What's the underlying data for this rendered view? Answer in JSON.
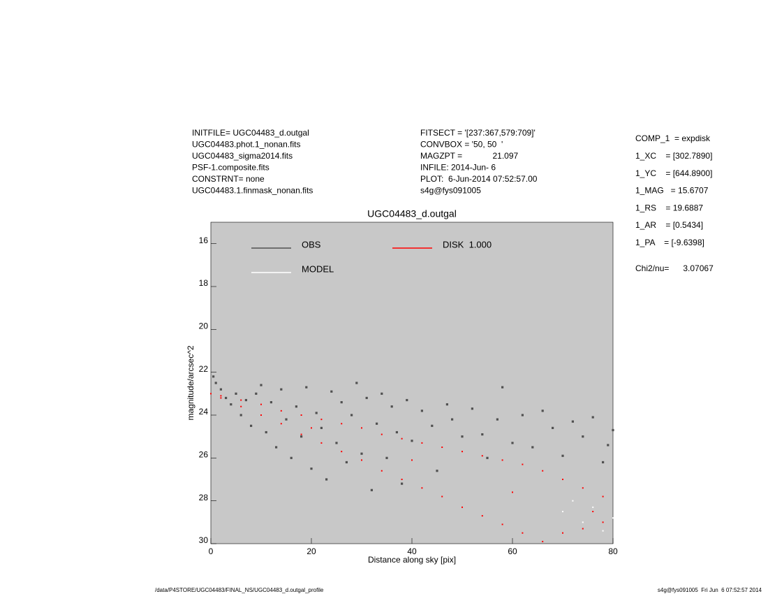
{
  "chart_data": {
    "type": "scatter",
    "title": "UGC04483_d.outgal",
    "xlabel": "Distance along sky [pix]",
    "ylabel": "magnitude/arcsec^2",
    "header_left": [
      "INITFILE= UGC04483_d.outgal",
      "UGC04483.phot.1_nonan.fits",
      "UGC04483_sigma2014.fits",
      "PSF-1.composite.fits",
      "CONSTRNT= none",
      "UGC04483.1.finmask_nonan.fits"
    ],
    "header_middle": [
      "FITSECT = '[237:367,579:709]'",
      "CONVBOX = '50, 50  '",
      "MAGZPT =             21.097",
      "INFILE: 2014-Jun- 6",
      "PLOT:  6-Jun-2014 07:52:57.00",
      "s4g@fys091005"
    ],
    "header_right": [
      "COMP_1  = expdisk",
      "1_XC    = [302.7890]",
      "1_YC    = [644.8900]",
      "1_MAG   = 15.6707",
      "1_RS    = 19.6887",
      "1_AR    = [0.5434]",
      "1_PA    = [-9.6398]"
    ],
    "chi2": "Chi2/nu=      3.07067",
    "footer_left": "/data/P4STORE/UGC04483/FINAL_NS/UGC04483_d.outgal_profile",
    "footer_right": "s4g@fys091005  Fri Jun  6 07:52:57 2014",
    "xlim": [
      0,
      80
    ],
    "xticks": [
      0,
      20,
      40,
      60,
      80
    ],
    "ylim": [
      15,
      30
    ],
    "yticks": [
      16,
      18,
      20,
      22,
      24,
      26,
      28,
      30
    ],
    "y_inverted": true,
    "background": "#c8c8c8",
    "legend": "top",
    "series": [
      {
        "name": "OBS",
        "color": "#505050",
        "x": [
          0.5,
          1,
          2,
          3,
          4,
          5,
          6,
          7,
          8,
          9,
          10,
          11,
          12,
          13,
          14,
          15,
          16,
          17,
          18,
          19,
          20,
          21,
          22,
          23,
          24,
          25,
          26,
          27,
          28,
          29,
          30,
          31,
          32,
          33,
          34,
          35,
          36,
          37,
          38,
          39,
          40,
          42,
          44,
          45,
          47,
          48,
          50,
          52,
          54,
          55,
          57,
          58,
          60,
          62,
          64,
          66,
          68,
          70,
          72,
          74,
          76,
          78,
          79,
          80
        ],
        "values": [
          22.2,
          22.5,
          22.8,
          23.2,
          23.5,
          23.0,
          24.0,
          23.3,
          24.5,
          23.0,
          22.6,
          24.8,
          23.4,
          25.5,
          22.8,
          24.2,
          26.0,
          23.6,
          25.0,
          22.7,
          26.5,
          23.9,
          24.6,
          27.0,
          22.9,
          25.3,
          23.4,
          26.2,
          24.0,
          22.5,
          25.8,
          23.2,
          27.5,
          24.4,
          23.0,
          26.0,
          23.6,
          24.8,
          27.2,
          23.3,
          25.2,
          23.8,
          24.5,
          26.6,
          23.5,
          24.2,
          25.0,
          23.7,
          24.9,
          26.0,
          24.2,
          22.7,
          25.3,
          24.0,
          25.5,
          23.8,
          24.6,
          25.9,
          24.3,
          25.0,
          24.1,
          26.2,
          25.4,
          24.7
        ]
      },
      {
        "name": "DISK  1.000",
        "color": "#ff0000",
        "x": [
          0,
          2,
          2,
          6,
          6,
          10,
          10,
          14,
          14,
          18,
          18,
          20,
          22,
          22,
          26,
          26,
          30,
          30,
          34,
          34,
          38,
          38,
          40,
          42,
          42,
          46,
          46,
          50,
          50,
          54,
          54,
          58,
          58,
          60,
          62,
          62,
          66,
          66,
          70,
          70,
          74,
          74,
          76,
          78,
          78
        ],
        "values": [
          23.0,
          23.1,
          23.2,
          23.3,
          23.6,
          23.5,
          24.0,
          23.8,
          24.4,
          24.0,
          24.9,
          24.6,
          24.2,
          25.3,
          24.4,
          25.7,
          24.6,
          26.1,
          24.9,
          26.6,
          25.1,
          27.0,
          26.1,
          25.3,
          27.4,
          25.5,
          27.8,
          25.7,
          28.3,
          25.9,
          28.7,
          26.1,
          29.1,
          27.6,
          26.3,
          29.5,
          26.6,
          29.9,
          27.0,
          29.5,
          27.4,
          29.3,
          28.5,
          27.8,
          29.0
        ]
      },
      {
        "name": "MODEL",
        "color": "#ffffff",
        "x": [
          70,
          72,
          74,
          76,
          78,
          80
        ],
        "values": [
          28.5,
          28.0,
          29.0,
          28.3,
          29.4,
          28.8
        ]
      }
    ]
  }
}
